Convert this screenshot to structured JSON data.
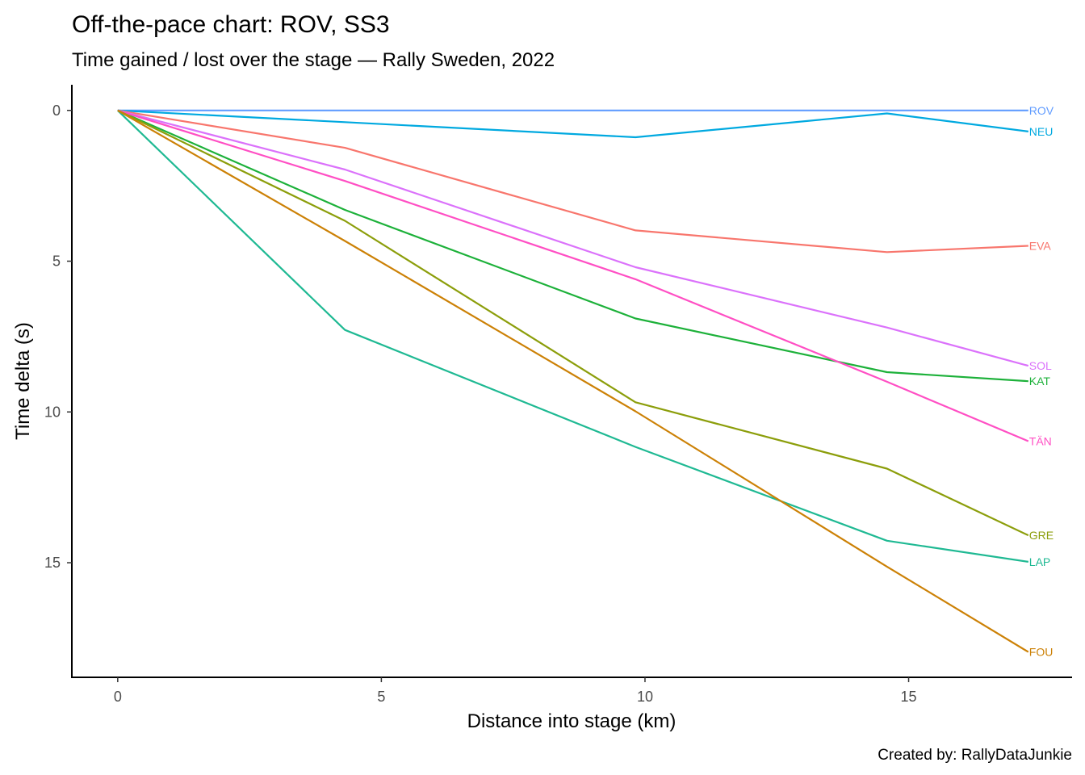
{
  "chart_data": {
    "type": "line",
    "title": "Off-the-pace chart: ROV, SS3",
    "subtitle": "Time gained / lost over the stage — Rally Sweden, 2022",
    "xlabel": "Distance into stage (km)",
    "ylabel": "Time delta (s)",
    "caption": "Created by: RallyDataJunkie",
    "xlim": [
      -0.87,
      18.1
    ],
    "ylim": [
      -0.85,
      18.8
    ],
    "y_reversed": true,
    "xticks": [
      0,
      5,
      10,
      15
    ],
    "xtick_labels": [
      "0",
      "5",
      "10",
      "15"
    ],
    "yticks": [
      0,
      5,
      10,
      15
    ],
    "ytick_labels": [
      "0",
      "5",
      "10",
      "15"
    ],
    "grid": false,
    "legend": "direct-labels-right",
    "x": [
      0,
      4.31,
      9.82,
      14.59,
      17.27
    ],
    "series": [
      {
        "name": "ROV",
        "color": "#619CFF",
        "values": [
          0,
          0,
          0,
          0,
          0
        ]
      },
      {
        "name": "NEU",
        "color": "#00A9E0",
        "values": [
          0,
          0.39,
          0.89,
          0.1,
          0.7
        ]
      },
      {
        "name": "EVA",
        "color": "#F8766D",
        "values": [
          0,
          1.24,
          3.98,
          4.7,
          4.49
        ]
      },
      {
        "name": "SOL",
        "color": "#DB72FB",
        "values": [
          0,
          1.96,
          5.2,
          7.2,
          8.47
        ]
      },
      {
        "name": "KAT",
        "color": "#1DB13A",
        "values": [
          0,
          3.3,
          6.9,
          8.68,
          8.98
        ]
      },
      {
        "name": "TÄN",
        "color": "#FF4FC4",
        "values": [
          0,
          2.34,
          5.6,
          9.0,
          10.97
        ]
      },
      {
        "name": "GRE",
        "color": "#8C9E0B",
        "values": [
          0,
          3.66,
          9.68,
          11.88,
          14.09
        ]
      },
      {
        "name": "LAP",
        "color": "#1FB993",
        "values": [
          0,
          7.28,
          11.16,
          14.27,
          14.97
        ]
      },
      {
        "name": "FOU",
        "color": "#CC8106",
        "values": [
          0,
          4.33,
          9.98,
          15.13,
          17.96
        ]
      }
    ]
  }
}
